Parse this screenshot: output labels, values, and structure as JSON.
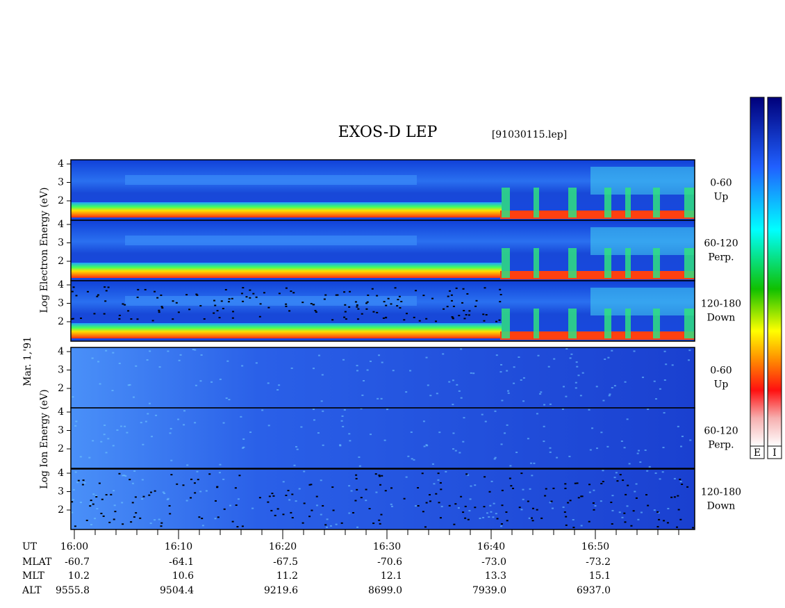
{
  "header": {
    "title": "EXOS-D LEP",
    "file": "[91030115.lep]"
  },
  "axis_labels": {
    "electron": "Log Electron Energy (eV)",
    "date": "Mar. 1,'91",
    "ion": "Log Ion Energy (eV)"
  },
  "panels": [
    {
      "species": "electron",
      "pitch": "0-60",
      "direction": "Up",
      "yticks": [
        "4",
        "3",
        "2"
      ]
    },
    {
      "species": "electron",
      "pitch": "60-120",
      "direction": "Perp.",
      "yticks": [
        "4",
        "3",
        "2"
      ]
    },
    {
      "species": "electron",
      "pitch": "120-180",
      "direction": "Down",
      "yticks": [
        "4",
        "3",
        "2"
      ]
    },
    {
      "species": "ion",
      "pitch": "0-60",
      "direction": "Up",
      "yticks": [
        "4",
        "3",
        "2"
      ]
    },
    {
      "species": "ion",
      "pitch": "60-120",
      "direction": "Perp.",
      "yticks": [
        "4",
        "3",
        "2"
      ]
    },
    {
      "species": "ion",
      "pitch": "120-180",
      "direction": "Down",
      "yticks": [
        "4",
        "3",
        "2"
      ]
    }
  ],
  "orbit": {
    "row_labels": [
      "UT",
      "MLAT",
      "MLT",
      "ALT"
    ],
    "columns": [
      [
        "16:00",
        "-60.7",
        "10.2",
        "9555.8"
      ],
      [
        "16:10",
        "-64.1",
        "10.6",
        "9504.4"
      ],
      [
        "16:20",
        "-67.5",
        "11.2",
        "9219.6"
      ],
      [
        "16:30",
        "-70.6",
        "12.1",
        "8699.0"
      ],
      [
        "16:40",
        "-73.0",
        "13.3",
        "7939.0"
      ],
      [
        "16:50",
        "-73.2",
        "15.1",
        "6937.0"
      ]
    ]
  },
  "colorbar_labels": [
    "E",
    "I"
  ]
}
